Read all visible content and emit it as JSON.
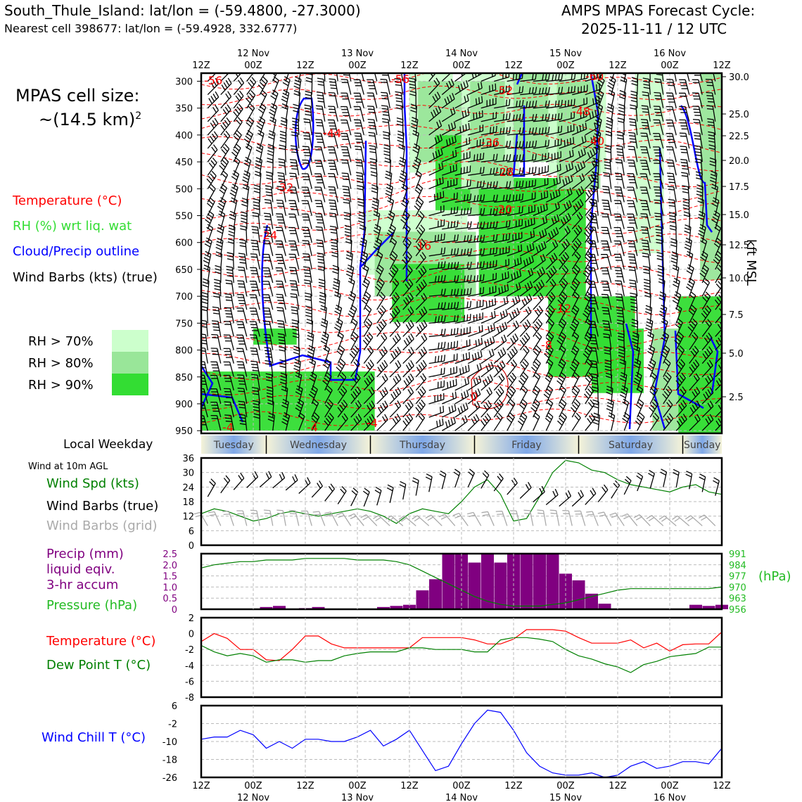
{
  "header": {
    "station_line": "South_Thule_Island: lat/lon = (-59.4800, -27.3000)",
    "cell_line": "Nearest cell 398677: lat/lon = (-59.4928, 332.6777)",
    "cycle_title": "AMPS MPAS Forecast Cycle:",
    "cycle_time": "2025-11-11 / 12 UTC",
    "cell_size_label": "MPAS cell size:",
    "cell_size_value": "~(14.5 km)",
    "cell_size_exp": "2"
  },
  "legend_top": {
    "temperature": "Temperature (°C)",
    "rh": "RH (%) wrt liq. wat",
    "cloud": "Cloud/Precip outline",
    "wind": "Wind Barbs (kts) (true)",
    "rh70": "RH > 70%",
    "rh80": "RH > 80%",
    "rh90": "RH > 90%",
    "kft": "kft MSL"
  },
  "colors": {
    "temperature": "#ff0000",
    "rh_label": "#33dd33",
    "cloud": "#0000ff",
    "rh70": "#ccffcc",
    "rh80": "#99e699",
    "rh90": "#33dd33",
    "precip": "#800080",
    "pressure": "#22bb22",
    "dewpoint": "#008000",
    "windchill": "#0000ff",
    "grid_barbs": "#aaaaaa"
  },
  "time_axis": {
    "top_dates": [
      "12 Nov",
      "13 Nov",
      "14 Nov",
      "15 Nov",
      "16 Nov"
    ],
    "hour_labels": [
      "12Z",
      "00Z",
      "12Z",
      "00Z",
      "12Z",
      "00Z",
      "12Z",
      "00Z",
      "12Z",
      "00Z",
      "12Z"
    ],
    "weekdays": [
      "Tuesday",
      "Wednesday",
      "Thursday",
      "Friday",
      "Saturday",
      "Sunday"
    ],
    "weekday_label": "Local Weekday"
  },
  "upper_panel": {
    "pressure_ticks": [
      "300",
      "350",
      "400",
      "450",
      "500",
      "550",
      "600",
      "650",
      "700",
      "750",
      "800",
      "850",
      "900",
      "950"
    ],
    "kft_ticks": [
      "30.0",
      "25.0",
      "22.5",
      "20.0",
      "17.5",
      "15.0",
      "12.5",
      "10.0",
      "7.5",
      "5.0",
      "2.5"
    ],
    "temp_labels": [
      "-56",
      "-56",
      "-52",
      "-60",
      "-48",
      "-44",
      "-40",
      "-36",
      "-28",
      "-32",
      "-20",
      "-24",
      "-16",
      "-12",
      "-8",
      "-4",
      "-4",
      "0",
      "-4"
    ]
  },
  "wind_panel": {
    "header": "Wind at 10m AGL",
    "spd_label": "Wind Spd (kts)",
    "barbs_true": "Wind Barbs (true)",
    "barbs_grid": "Wind Barbs (grid)",
    "yticks": [
      "36",
      "30",
      "24",
      "18",
      "12",
      "6",
      "0"
    ]
  },
  "precip_panel": {
    "label1": "Precip (mm)",
    "label2": "liquid eqiv.",
    "label3": "3-hr accum",
    "pressure_label": "Pressure (hPa)",
    "hpa": "(hPa)",
    "yticks": [
      "2.5",
      "2.0",
      "1.5",
      "1.0",
      "0.5",
      "0"
    ],
    "pticks": [
      "991",
      "984",
      "977",
      "970",
      "963",
      "956"
    ]
  },
  "temp_panel": {
    "temp_label": "Temperature (°C)",
    "dew_label": "Dew Point T (°C)",
    "yticks": [
      "2",
      "0",
      "-2",
      "-4",
      "-6",
      "-8"
    ]
  },
  "chill_panel": {
    "label": "Wind Chill T (°C)",
    "yticks": [
      "6",
      "-2",
      "-10",
      "-18",
      "-26"
    ]
  },
  "chart_data": {
    "type": "line",
    "x_hours": [
      0,
      3,
      6,
      9,
      12,
      15,
      18,
      21,
      24,
      27,
      30,
      33,
      36,
      39,
      42,
      45,
      48,
      51,
      54,
      57,
      60,
      63,
      66,
      69,
      72,
      75,
      78,
      81,
      84,
      87,
      90,
      93,
      96,
      99,
      102,
      105,
      108,
      111,
      114,
      117,
      120
    ],
    "wind_speed_kts": [
      13,
      15,
      14,
      12,
      10,
      11,
      13,
      14,
      13,
      12,
      13,
      14,
      15,
      14,
      12,
      9,
      13,
      15,
      14,
      13,
      18,
      24,
      27,
      21,
      10,
      11,
      20,
      30,
      35,
      34,
      31,
      30,
      27,
      25,
      24,
      23,
      22,
      24,
      25,
      22,
      21
    ],
    "precip_mm": [
      0,
      0,
      0,
      0,
      0,
      0.1,
      0.15,
      0,
      0.05,
      0.1,
      0,
      0,
      0,
      0,
      0.1,
      0.15,
      0.2,
      0.85,
      1.35,
      2.5,
      2.5,
      2.1,
      2.5,
      2.1,
      2.5,
      2.5,
      2.5,
      2.5,
      1.6,
      1.3,
      0.7,
      0.25,
      0,
      0,
      0,
      0,
      0,
      0,
      0.2,
      0.15,
      0.2
    ],
    "pressure_hpa": [
      982,
      984,
      985,
      986,
      986,
      987,
      987,
      987,
      988,
      988,
      988,
      988,
      987,
      987,
      987,
      986,
      984,
      980,
      976,
      972,
      968,
      964,
      961,
      959,
      958,
      958,
      958,
      959,
      960,
      962,
      964,
      966,
      968,
      969,
      969,
      969,
      969,
      969,
      969,
      969,
      970
    ],
    "temperature_c": [
      -1,
      0,
      -0.6,
      -2,
      -2,
      -3.3,
      -3.4,
      -2,
      -0.3,
      -0.3,
      -1.3,
      -1.8,
      -1.8,
      -1.8,
      -1.8,
      -1.8,
      -1.8,
      -0.5,
      -0.5,
      -0.5,
      -0.5,
      -0.8,
      -1.3,
      -1.3,
      -0.7,
      0.5,
      0.5,
      0.5,
      0.3,
      -0.5,
      -1.2,
      -1.2,
      -1.2,
      -0.8,
      -1.8,
      -1.2,
      -2.2,
      -1.4,
      -1.3,
      -1.3,
      0.2
    ],
    "dewpoint_c": [
      -1.5,
      -2.3,
      -2.8,
      -2.5,
      -2.8,
      -3.6,
      -3.3,
      -3.3,
      -3.6,
      -3.4,
      -3.4,
      -2.8,
      -2.5,
      -2.3,
      -2.3,
      -2.3,
      -1.8,
      -1.8,
      -2,
      -2,
      -2,
      -2.3,
      -2.3,
      -0.8,
      -0.5,
      -0.5,
      -0.7,
      -1,
      -2,
      -2.8,
      -3.2,
      -3.8,
      -4.2,
      -4.9,
      -3.9,
      -3.5,
      -2.9,
      -2.7,
      -2.5,
      -1.7,
      -1.7
    ],
    "windchill_c": [
      -9,
      -8,
      -8,
      -5,
      -7,
      -13,
      -10,
      -13,
      -9,
      -9,
      -10,
      -10,
      -8,
      -5,
      -12,
      -9,
      -5,
      -14,
      -23,
      -21,
      -11,
      -2,
      4,
      3,
      -5,
      -15,
      -21,
      -24,
      -25,
      -25,
      -24,
      -26,
      -25,
      -21,
      -19,
      -22,
      -21,
      -19,
      -19,
      -20,
      -13
    ],
    "ylabel": "",
    "xlabel": ""
  }
}
